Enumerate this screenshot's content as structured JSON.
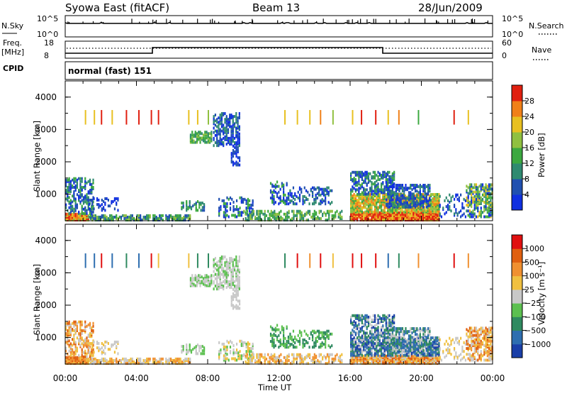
{
  "header": {
    "station": "Syowa East (fitACF)",
    "beam": "Beam 13",
    "date": "28/Jun/2009"
  },
  "noise_panel": {
    "left_label": "N.Sky",
    "left_ticks": [
      "10^5",
      "10^0"
    ],
    "right_label": "N.Search",
    "right_ticks": [
      "10^5",
      "10^0"
    ]
  },
  "freq_panel": {
    "left_label_top": "Freq.",
    "left_label_bottom": "[MHz]",
    "left_ticks": [
      "18",
      "8"
    ],
    "right_label": "Nave",
    "right_ticks": [
      "60",
      "0"
    ]
  },
  "cpid_panel": {
    "label": "CPID",
    "value": "normal (fast) 151"
  },
  "chart_data": [
    {
      "type": "heatmap",
      "title": "",
      "ylabel": "Slant Range [km]",
      "y_ticks": [
        "4000",
        "3000",
        "2000",
        "1000"
      ],
      "ylim": [
        180,
        4500
      ],
      "colorbar_label": "Power [dB]",
      "colorbar_ticks": [
        "28",
        "24",
        "20",
        "16",
        "12",
        "8",
        "4"
      ],
      "colors": [
        "#1030e0",
        "#2050b0",
        "#2f8a70",
        "#3ca840",
        "#90c040",
        "#e8c020",
        "#f08018",
        "#e02010"
      ]
    },
    {
      "type": "heatmap",
      "title": "",
      "ylabel": "Slant Range [km]",
      "y_ticks": [
        "4000",
        "3000",
        "2000",
        "1000"
      ],
      "ylim": [
        180,
        4500
      ],
      "colorbar_label": "Velocity [m s⁻¹]",
      "colorbar_ticks": [
        "1000",
        "500",
        "100",
        "25",
        "−25",
        "−100",
        "−500",
        "−1000"
      ],
      "colors": [
        "#1a3fa8",
        "#2e6eb0",
        "#2f8a60",
        "#5cc050",
        "#c8c8c8",
        "#f0c040",
        "#f09030",
        "#e06010",
        "#e01010"
      ]
    }
  ],
  "time_axis": {
    "label": "Time UT",
    "ticks": [
      "00:00",
      "04:00",
      "08:00",
      "12:00",
      "16:00",
      "20:00",
      "00:00"
    ]
  },
  "legend_marks": {
    "n_search_style": "dotted",
    "nave_style": "dotted"
  }
}
